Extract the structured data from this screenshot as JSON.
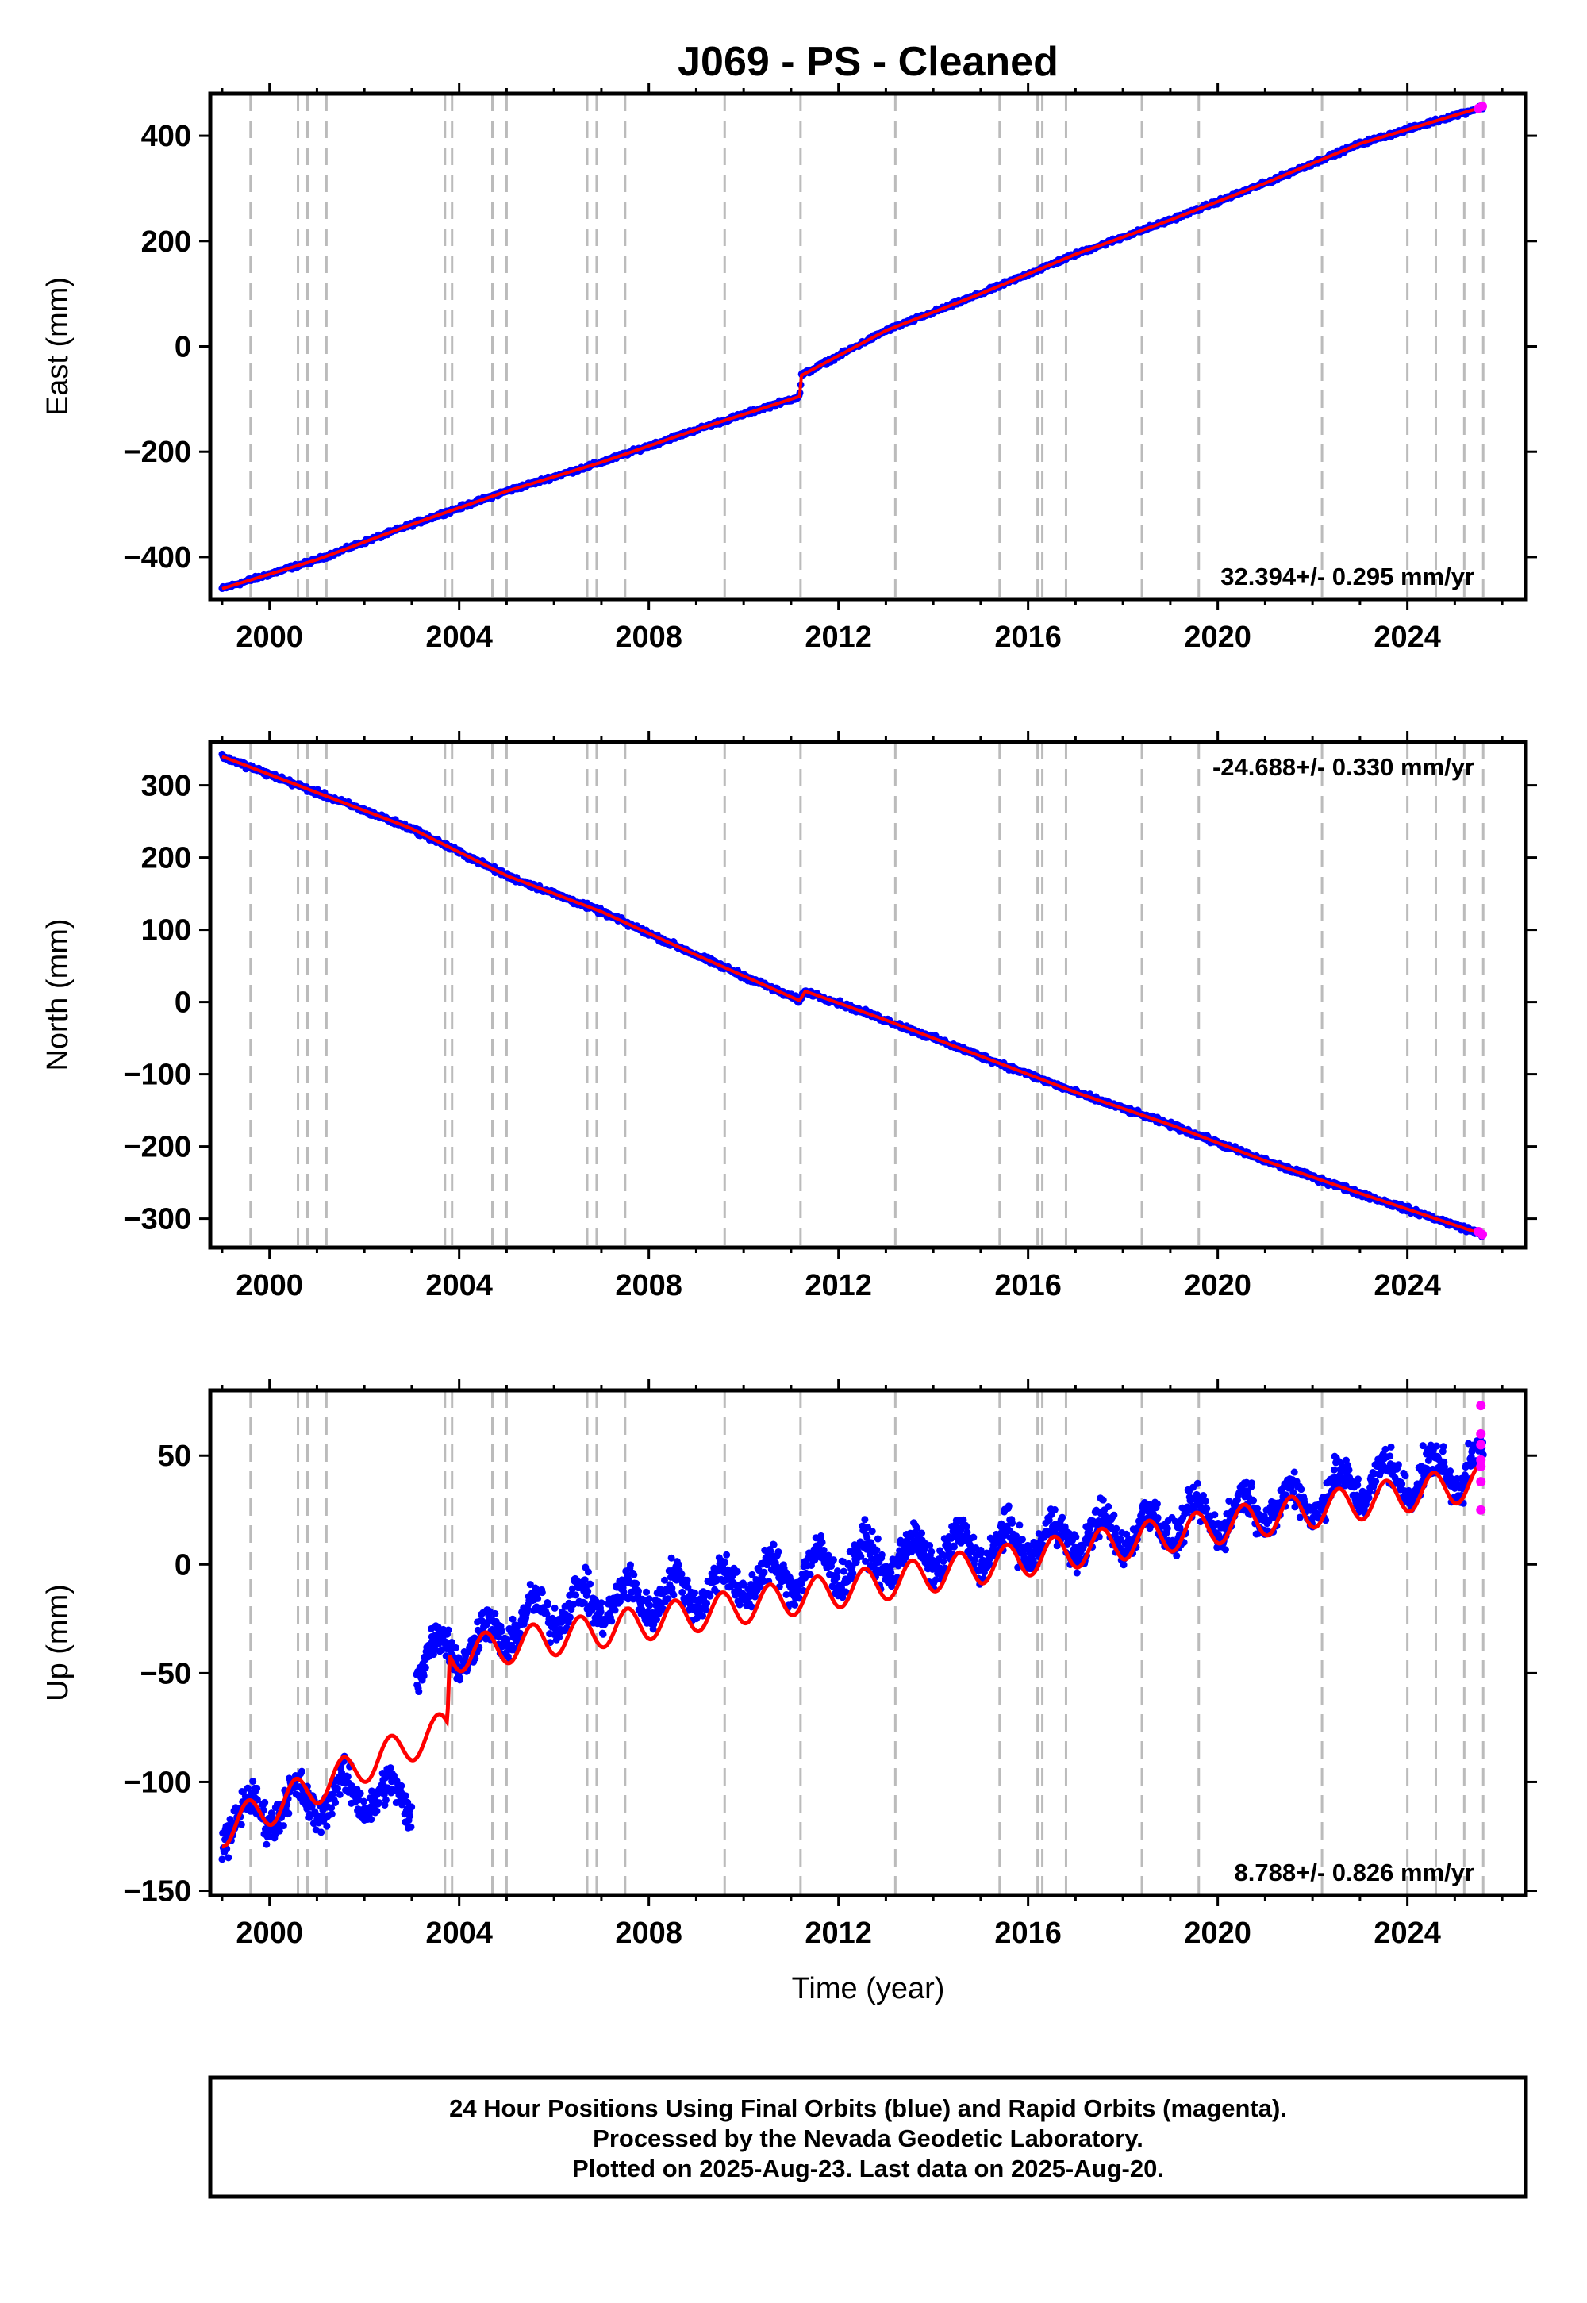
{
  "title": "J069  - PS - Cleaned",
  "colors": {
    "final_orbits": "#0000ff",
    "rapid_orbits": "#ff00ff",
    "model": "#ff0000",
    "event_lines": "#bbbbbb"
  },
  "xlabel": "Time (year)",
  "x_ticks": [
    "2000",
    "2004",
    "2008",
    "2012",
    "2016",
    "2020",
    "2024"
  ],
  "footer": {
    "line1": "24 Hour Positions Using Final Orbits (blue) and Rapid Orbits (magenta).",
    "line2": "Processed by the Nevada Geodetic Laboratory.",
    "line3": "Plotted on 2025-Aug-23. Last data on 2025-Aug-20."
  },
  "chart_data": [
    {
      "type": "scatter",
      "component": "east",
      "ylabel": "East (mm)",
      "xlim": [
        1998.75,
        2026.5
      ],
      "ylim": [
        -480,
        480
      ],
      "y_ticks": [
        -400,
        -200,
        0,
        200,
        400
      ],
      "y_tick_labels": [
        "−400",
        "−200",
        "0",
        "200",
        "400"
      ],
      "rate_text": "32.394+/- 0.295 mm/yr",
      "rate_position": "bottom-right",
      "event_lines": [
        1999.6,
        2000.6,
        2000.8,
        2001.2,
        2003.7,
        2003.85,
        2004.7,
        2005.0,
        2006.7,
        2006.9,
        2007.5,
        2009.6,
        2011.2,
        2013.2,
        2015.4,
        2016.2,
        2016.3,
        2016.8,
        2018.4,
        2019.6,
        2022.2,
        2024.0,
        2024.6,
        2025.2,
        2025.6
      ],
      "series": [
        {
          "x": [
            1999.0,
            2001.0,
            2003.0,
            2005.0,
            2007.0,
            2009.0,
            2011.18,
            2011.22,
            2013.0,
            2015.0,
            2017.0,
            2019.0,
            2021.0,
            2023.0,
            2025.6
          ],
          "y": [
            -460,
            -405,
            -338,
            -275,
            -220,
            -158,
            -95,
            -55,
            30,
            100,
            175,
            240,
            310,
            385,
            455
          ]
        }
      ],
      "rapid_points": [
        [
          2025.5,
          452
        ],
        [
          2025.58,
          456
        ]
      ]
    },
    {
      "type": "scatter",
      "component": "north",
      "ylabel": "North (mm)",
      "xlim": [
        1998.75,
        2026.5
      ],
      "ylim": [
        -340,
        360
      ],
      "y_ticks": [
        -300,
        -200,
        -100,
        0,
        100,
        200,
        300
      ],
      "y_tick_labels": [
        "−300",
        "−200",
        "−100",
        "0",
        "100",
        "200",
        "300"
      ],
      "rate_text": "-24.688+/- 0.330 mm/yr",
      "rate_position": "top-right",
      "event_lines": [
        1999.6,
        2000.6,
        2000.8,
        2001.2,
        2003.7,
        2003.85,
        2004.7,
        2005.0,
        2006.7,
        2006.9,
        2007.5,
        2009.6,
        2011.2,
        2013.2,
        2015.4,
        2016.2,
        2016.3,
        2016.8,
        2018.4,
        2019.6,
        2022.2,
        2024.0,
        2024.6,
        2025.2,
        2025.6
      ],
      "series": [
        {
          "x": [
            1999.0,
            2001.0,
            2003.0,
            2005.0,
            2007.0,
            2009.0,
            2011.18,
            2011.3,
            2013.0,
            2015.0,
            2017.0,
            2019.0,
            2021.0,
            2023.0,
            2025.6
          ],
          "y": [
            340,
            290,
            240,
            175,
            125,
            65,
            2,
            15,
            -25,
            -75,
            -125,
            -170,
            -220,
            -265,
            -322
          ]
        }
      ],
      "rapid_points": [
        [
          2025.5,
          -318
        ],
        [
          2025.58,
          -322
        ]
      ]
    },
    {
      "type": "scatter",
      "component": "up",
      "ylabel": "Up (mm)",
      "xlim": [
        1998.75,
        2026.5
      ],
      "ylim": [
        -152,
        80
      ],
      "y_ticks": [
        -150,
        -100,
        -50,
        0,
        50
      ],
      "y_tick_labels": [
        "−150",
        "−100",
        "−50",
        "0",
        "50"
      ],
      "rate_text": "8.788+/- 0.826 mm/yr",
      "rate_position": "bottom-right",
      "event_lines": [
        1999.6,
        2000.6,
        2000.8,
        2001.2,
        2003.7,
        2003.85,
        2004.7,
        2005.0,
        2006.7,
        2006.9,
        2007.5,
        2009.6,
        2011.2,
        2013.2,
        2015.4,
        2016.2,
        2016.3,
        2016.8,
        2018.4,
        2019.6,
        2022.2,
        2024.0,
        2024.6,
        2025.2,
        2025.6
      ],
      "data_segments": [
        {
          "x": [
            1999.0,
            2000.0,
            2001.0,
            2002.0,
            2003.0
          ],
          "y": [
            -120,
            -112,
            -108,
            -105,
            -110
          ]
        },
        {
          "x": [
            2003.1,
            2003.7,
            2004.0,
            2006.0,
            2008.0,
            2010.0,
            2012.0,
            2014.0,
            2016.0,
            2018.0,
            2020.0,
            2022.0,
            2023.0,
            2024.0,
            2025.6
          ],
          "y": [
            -45,
            -38,
            -40,
            -20,
            -15,
            -8,
            0,
            5,
            10,
            15,
            22,
            30,
            38,
            40,
            45
          ]
        }
      ],
      "model": {
        "x": [
          1999.0,
          2003.75,
          2003.8,
          2025.6
        ],
        "y": [
          -122,
          -75,
          -42,
          38
        ],
        "annual_amplitude": 8
      },
      "rapid_points": [
        [
          2025.55,
          73
        ],
        [
          2025.55,
          60
        ],
        [
          2025.55,
          55
        ],
        [
          2025.55,
          48
        ],
        [
          2025.55,
          45
        ],
        [
          2025.55,
          38
        ],
        [
          2025.55,
          25
        ]
      ]
    }
  ]
}
